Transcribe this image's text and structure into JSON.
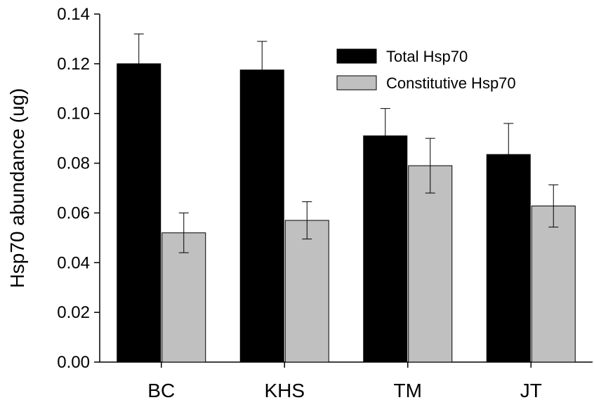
{
  "chart_data": {
    "type": "bar",
    "title": "",
    "xlabel": "",
    "ylabel": "Hsp70 abundance (ug)",
    "ylim": [
      0,
      0.14
    ],
    "yticks": [
      "0.00",
      "0.02",
      "0.04",
      "0.06",
      "0.08",
      "0.10",
      "0.12",
      "0.14"
    ],
    "categories": [
      "BC",
      "KHS",
      "TM",
      "JT"
    ],
    "legend_position": "top-right",
    "grid": false,
    "series": [
      {
        "name": "Total Hsp70",
        "color": "#000000",
        "values": [
          0.12,
          0.1175,
          0.091,
          0.0835
        ],
        "errors": [
          0.012,
          0.0115,
          0.011,
          0.0125
        ]
      },
      {
        "name": "Constitutive Hsp70",
        "color": "#c0c0c0",
        "values": [
          0.052,
          0.057,
          0.079,
          0.0628
        ],
        "errors": [
          0.008,
          0.0075,
          0.011,
          0.0085
        ]
      }
    ]
  }
}
